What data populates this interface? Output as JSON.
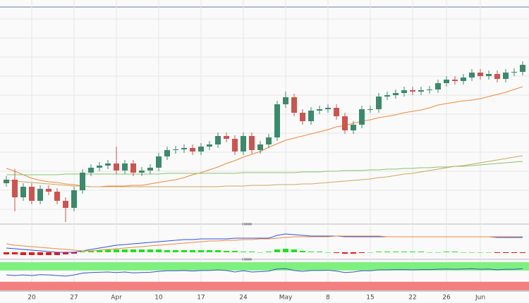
{
  "chart_data": [
    {
      "type": "candlestick",
      "categories": [
        null,
        null,
        null,
        "20",
        null,
        null,
        null,
        null,
        "27",
        null,
        null,
        null,
        null,
        "Apr",
        null,
        null,
        null,
        null,
        "10",
        null,
        null,
        null,
        null,
        "17",
        null,
        null,
        null,
        null,
        "24",
        null,
        null,
        null,
        null,
        "May",
        null,
        null,
        null,
        null,
        "8",
        null,
        null,
        null,
        null,
        "15",
        null,
        null,
        null,
        null,
        "22",
        null,
        null,
        null,
        "26",
        null,
        null,
        null,
        "Jun",
        null,
        null,
        null,
        null,
        null
      ],
      "open": [
        55,
        60,
        35,
        50,
        30,
        47,
        43,
        30,
        20,
        45,
        70,
        77,
        80,
        83,
        73,
        83,
        70,
        73,
        77,
        93,
        102,
        103,
        105,
        100,
        107,
        110,
        122,
        118,
        100,
        122,
        102,
        110,
        120,
        167,
        177,
        155,
        143,
        158,
        160,
        162,
        150,
        130,
        138,
        160,
        160,
        178,
        180,
        183,
        187,
        185,
        187,
        188,
        197,
        202,
        200,
        205,
        212,
        207,
        210,
        203,
        212,
        213
      ],
      "high": [
        65,
        75,
        55,
        55,
        52,
        52,
        48,
        35,
        50,
        75,
        82,
        85,
        88,
        107,
        88,
        88,
        78,
        82,
        98,
        107,
        108,
        110,
        110,
        112,
        115,
        127,
        127,
        123,
        127,
        127,
        115,
        125,
        172,
        185,
        182,
        160,
        163,
        165,
        167,
        167,
        155,
        143,
        165,
        165,
        183,
        185,
        188,
        192,
        192,
        192,
        193,
        202,
        207,
        207,
        210,
        217,
        217,
        215,
        215,
        217,
        218,
        228
      ],
      "low": [
        50,
        15,
        30,
        25,
        25,
        38,
        25,
        0,
        15,
        40,
        65,
        72,
        75,
        68,
        68,
        65,
        65,
        68,
        72,
        88,
        97,
        98,
        95,
        95,
        102,
        105,
        113,
        95,
        95,
        97,
        97,
        105,
        115,
        162,
        150,
        138,
        138,
        153,
        155,
        145,
        125,
        125,
        133,
        155,
        155,
        173,
        175,
        178,
        180,
        180,
        182,
        183,
        192,
        195,
        195,
        200,
        202,
        202,
        198,
        198,
        207,
        208
      ],
      "close": [
        60,
        35,
        50,
        30,
        47,
        43,
        30,
        20,
        45,
        70,
        77,
        80,
        83,
        73,
        83,
        70,
        73,
        77,
        93,
        102,
        103,
        105,
        100,
        107,
        110,
        122,
        118,
        100,
        122,
        102,
        110,
        120,
        167,
        177,
        155,
        143,
        158,
        160,
        162,
        150,
        130,
        138,
        160,
        160,
        178,
        180,
        183,
        187,
        185,
        187,
        188,
        197,
        202,
        200,
        205,
        212,
        207,
        210,
        203,
        212,
        213,
        223
      ],
      "up_color": "#3a8a6c",
      "down_color": "#d0524e",
      "ylim": [
        0,
        315
      ],
      "yticks": [
        18,
        45,
        72,
        99,
        126,
        153,
        180,
        207,
        234,
        261,
        288
      ],
      "grid": true,
      "series": [
        {
          "color": "#f0883a",
          "values": [
            76,
            72,
            67,
            62,
            59,
            57,
            56,
            54,
            53,
            51,
            50,
            50,
            51,
            51,
            51,
            52,
            52,
            54,
            56,
            58,
            60,
            63,
            67,
            70,
            74,
            78,
            83,
            87,
            92,
            96,
            100,
            106,
            111,
            116,
            119,
            122,
            125,
            128,
            131,
            135,
            137,
            140,
            143,
            145,
            148,
            150,
            152,
            155,
            157,
            159,
            162,
            166,
            168,
            170,
            172,
            173,
            175,
            178,
            181,
            184,
            188,
            192
          ]
        },
        {
          "color": "#86c46c",
          "values": [
            67,
            67,
            67,
            67,
            67,
            67,
            67,
            68,
            68,
            68,
            68,
            68,
            68,
            68,
            68,
            68,
            68,
            68,
            68,
            69,
            69,
            69,
            69,
            69,
            69,
            69,
            69,
            69,
            70,
            70,
            70,
            70,
            70,
            70,
            70,
            71,
            71,
            71,
            72,
            72,
            73,
            73,
            73,
            74,
            74,
            75,
            75,
            76,
            76,
            77,
            77,
            78,
            78,
            79,
            79,
            80,
            81,
            82,
            83,
            84,
            85,
            86
          ]
        },
        {
          "color": "#c9a75c",
          "values": [
            59,
            58,
            57,
            56,
            55,
            54,
            53,
            52,
            51,
            51,
            50,
            50,
            50,
            50,
            50,
            50,
            50,
            50,
            50,
            50,
            50,
            50,
            50,
            50,
            50,
            50,
            51,
            51,
            51,
            52,
            52,
            52,
            53,
            53,
            53,
            54,
            54,
            55,
            56,
            57,
            58,
            59,
            60,
            61,
            63,
            64,
            66,
            68,
            69,
            71,
            73,
            75,
            77,
            79,
            80,
            82,
            84,
            86,
            88,
            90,
            92,
            94
          ]
        }
      ]
    },
    {
      "type": "macd",
      "ylim": [
        -8,
        36
      ],
      "histogram": [
        -3,
        -3,
        -4,
        -4,
        -4,
        -4,
        -4,
        -3,
        -2,
        1,
        2,
        3,
        4,
        4,
        4,
        4,
        4,
        4,
        4,
        3,
        3,
        3,
        3,
        3,
        3,
        3,
        2,
        2,
        1,
        1,
        0,
        1,
        4,
        5,
        4,
        2,
        1,
        1,
        0,
        -1,
        -2,
        -2,
        -1,
        0,
        1,
        1,
        1,
        1,
        1,
        1,
        0,
        0,
        1,
        1,
        0,
        0,
        0,
        0,
        -1,
        -1,
        -1,
        -1
      ],
      "up_color": "#19e619",
      "down_color": "#e61919",
      "series": [
        {
          "color": "#3050e0",
          "values": [
            6,
            5,
            4,
            3,
            2,
            1,
            0,
            0,
            0,
            2,
            4,
            6,
            8,
            10,
            11,
            12,
            13,
            14,
            15,
            16,
            17,
            18,
            18,
            19,
            19,
            19,
            19,
            20,
            20,
            20,
            20,
            20,
            24,
            26,
            25,
            24,
            23,
            23,
            23,
            23,
            22,
            22,
            22,
            22,
            22,
            22,
            22,
            22,
            22,
            22,
            22,
            22,
            22,
            22,
            22,
            22,
            22,
            22,
            21,
            21,
            21,
            21
          ]
        },
        {
          "color": "#f0883a",
          "values": [
            12,
            10,
            9,
            8,
            7,
            6,
            5,
            4,
            3,
            2,
            2,
            3,
            4,
            5,
            6,
            7,
            8,
            9,
            10,
            11,
            12,
            13,
            14,
            15,
            16,
            16,
            17,
            17,
            18,
            18,
            19,
            19,
            20,
            21,
            22,
            22,
            22,
            22,
            22,
            23,
            23,
            23,
            23,
            23,
            23,
            22,
            22,
            22,
            22,
            22,
            22,
            22,
            22,
            22,
            22,
            22,
            22,
            22,
            22,
            22,
            22,
            22
          ]
        }
      ]
    },
    {
      "type": "line",
      "ylim": [
        0,
        100
      ],
      "bands": [
        {
          "range": [
            67,
            95
          ],
          "color": "#7ef07e"
        },
        {
          "range": [
            0,
            29
          ],
          "color": "#f28080"
        }
      ],
      "series": [
        {
          "color": "#3a52c8",
          "values": [
            52,
            50,
            52,
            50,
            53,
            52,
            50,
            48,
            52,
            58,
            60,
            61,
            62,
            60,
            62,
            59,
            60,
            61,
            64,
            66,
            66,
            67,
            65,
            67,
            67,
            69,
            67,
            62,
            66,
            62,
            63,
            65,
            72,
            73,
            67,
            64,
            67,
            67,
            68,
            65,
            60,
            62,
            66,
            66,
            69,
            69,
            70,
            70,
            69,
            70,
            70,
            71,
            72,
            71,
            72,
            73,
            71,
            72,
            69,
            71,
            71,
            73
          ]
        }
      ]
    }
  ]
}
